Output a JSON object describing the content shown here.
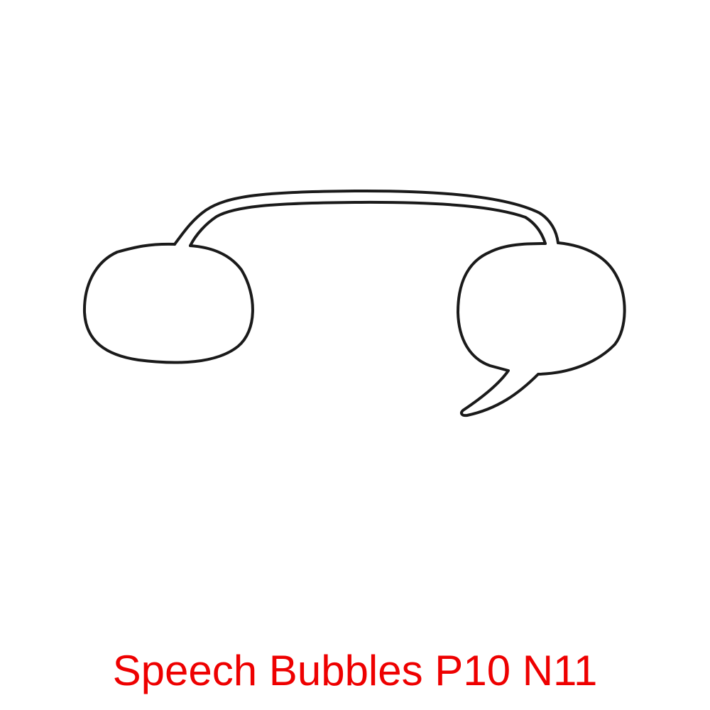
{
  "caption": {
    "text": "Speech Bubbles P10 N11",
    "color": "#ee0000"
  },
  "illustration": {
    "stroke_color": "#1a1a1a",
    "background": "#ffffff",
    "bubbles": [
      {
        "name": "left-speech-bubble",
        "has_tail": false
      },
      {
        "name": "right-speech-bubble",
        "has_tail": true,
        "tail_direction": "down-left"
      }
    ],
    "connector": "double-line-arc"
  }
}
